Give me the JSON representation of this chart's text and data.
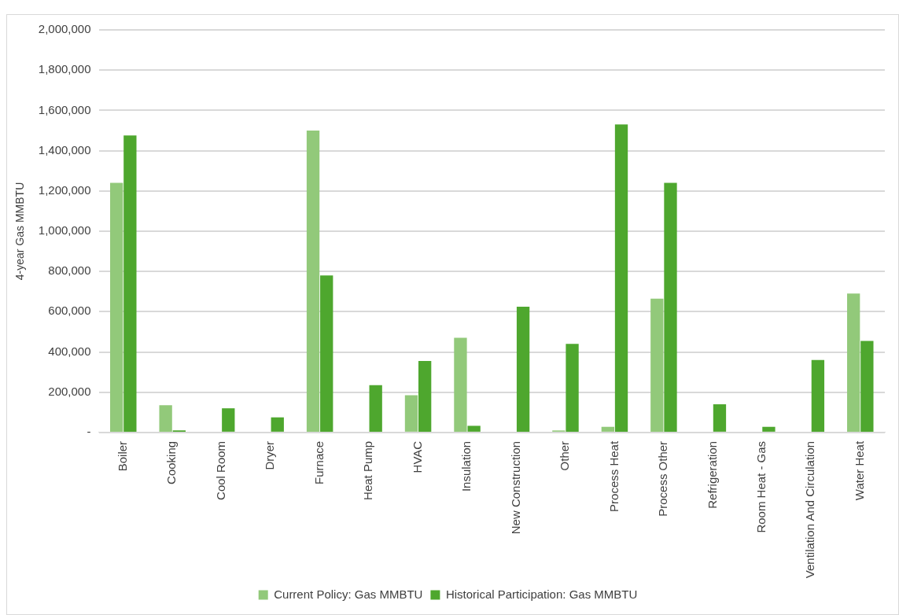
{
  "chart_data": {
    "type": "bar",
    "ylabel": "4-year Gas MMBTU",
    "categories": [
      "Boiler",
      "Cooking",
      "Cool Room",
      "Dryer",
      "Furnace",
      "Heat Pump",
      "HVAC",
      "Insulation",
      "New Construction",
      "Other",
      "Process Heat",
      "Process Other",
      "Refrigeration",
      "Room Heat - Gas",
      "Ventilation And Circulation",
      "Water Heat"
    ],
    "series": [
      {
        "name": "Current Policy: Gas MMBTU",
        "color": "#92c97a",
        "values": [
          1240000,
          135000,
          0,
          0,
          1500000,
          0,
          185000,
          470000,
          0,
          10000,
          28000,
          665000,
          0,
          0,
          0,
          690000
        ]
      },
      {
        "name": "Historical Participation: Gas MMBTU",
        "color": "#4ea72e",
        "values": [
          1475000,
          10000,
          120000,
          75000,
          780000,
          235000,
          355000,
          33000,
          625000,
          440000,
          1530000,
          1240000,
          140000,
          28000,
          360000,
          455000
        ]
      }
    ],
    "ylim": [
      0,
      2000000
    ],
    "yticks": [
      {
        "value": 0,
        "label": "-"
      },
      {
        "value": 200000,
        "label": "200,000"
      },
      {
        "value": 400000,
        "label": "400,000"
      },
      {
        "value": 600000,
        "label": "600,000"
      },
      {
        "value": 800000,
        "label": "800,000"
      },
      {
        "value": 1000000,
        "label": "1,000,000"
      },
      {
        "value": 1200000,
        "label": "1,200,000"
      },
      {
        "value": 1400000,
        "label": "1,400,000"
      },
      {
        "value": 1600000,
        "label": "1,600,000"
      },
      {
        "value": 1800000,
        "label": "1,800,000"
      },
      {
        "value": 2000000,
        "label": "2,000,000"
      }
    ],
    "grid": "y",
    "legend": "bottom"
  }
}
